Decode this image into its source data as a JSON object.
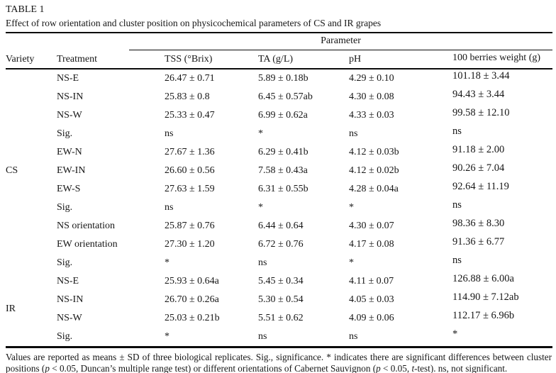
{
  "page": {
    "label": "TABLE 1",
    "caption": "Effect of row orientation and cluster position on physicochemical parameters of CS and IR grapes"
  },
  "table": {
    "group_header": "Parameter",
    "columns": [
      {
        "key": "variety",
        "label": "Variety"
      },
      {
        "key": "treatment",
        "label": "Treatment"
      },
      {
        "key": "tss",
        "label": "TSS (°Brix)"
      },
      {
        "key": "ta",
        "label": "TA (g/L)"
      },
      {
        "key": "ph",
        "label": "pH"
      },
      {
        "key": "weight",
        "label": "100 berries weight (g)"
      }
    ],
    "groups": [
      {
        "variety": "CS",
        "rows": [
          {
            "treatment": "NS-E",
            "tss": "26.47 ± 0.71",
            "ta": "5.89 ± 0.18b",
            "ph": "4.29 ± 0.10",
            "weight": "101.18 ± 3.44"
          },
          {
            "treatment": "NS-IN",
            "tss": "25.83 ± 0.8",
            "ta": "6.45 ± 0.57ab",
            "ph": "4.30 ± 0.08",
            "weight": "94.43 ± 3.44"
          },
          {
            "treatment": "NS-W",
            "tss": "25.33 ± 0.47",
            "ta": "6.99 ± 0.62a",
            "ph": "4.33 ± 0.03",
            "weight": "99.58 ± 12.10"
          },
          {
            "treatment": "Sig.",
            "tss": "ns",
            "ta": "*",
            "ph": "ns",
            "weight": "ns"
          },
          {
            "treatment": "EW-N",
            "tss": "27.67 ± 1.36",
            "ta": "6.29 ± 0.41b",
            "ph": "4.12 ± 0.03b",
            "weight": "91.18 ± 2.00"
          },
          {
            "treatment": "EW-IN",
            "tss": "26.60 ± 0.56",
            "ta": "7.58 ± 0.43a",
            "ph": "4.12 ± 0.02b",
            "weight": "90.26 ± 7.04"
          },
          {
            "treatment": "EW-S",
            "tss": "27.63 ± 1.59",
            "ta": "6.31 ± 0.55b",
            "ph": "4.28 ± 0.04a",
            "weight": "92.64 ± 11.19"
          },
          {
            "treatment": "Sig.",
            "tss": "ns",
            "ta": "*",
            "ph": "*",
            "weight": "ns"
          },
          {
            "treatment": "NS orientation",
            "tss": "25.87 ± 0.76",
            "ta": "6.44 ± 0.64",
            "ph": "4.30 ± 0.07",
            "weight": "98.36 ± 8.30"
          },
          {
            "treatment": "EW orientation",
            "tss": "27.30 ± 1.20",
            "ta": "6.72 ± 0.76",
            "ph": "4.17 ± 0.08",
            "weight": "91.36 ± 6.77"
          },
          {
            "treatment": "Sig.",
            "tss": "*",
            "ta": "ns",
            "ph": "*",
            "weight": "ns"
          }
        ]
      },
      {
        "variety": "IR",
        "rows": [
          {
            "treatment": "NS-E",
            "tss": "25.93 ± 0.64a",
            "ta": "5.45 ± 0.34",
            "ph": "4.11 ± 0.07",
            "weight": "126.88 ± 6.00a"
          },
          {
            "treatment": "NS-IN",
            "tss": "26.70 ± 0.26a",
            "ta": "5.30 ± 0.54",
            "ph": "4.05 ± 0.03",
            "weight": "114.90 ± 7.12ab"
          },
          {
            "treatment": "NS-W",
            "tss": "25.03 ± 0.21b",
            "ta": "5.51 ± 0.62",
            "ph": "4.09 ± 0.06",
            "weight": "112.17 ± 6.96b"
          },
          {
            "treatment": "Sig.",
            "tss": "*",
            "ta": "ns",
            "ph": "ns",
            "weight": "*"
          }
        ]
      }
    ]
  },
  "footnote": {
    "segments": [
      {
        "text": "Values are reported as means ± SD of three biological replicates. Sig., significance. * indicates there are significant differences between cluster positions (",
        "italic": false
      },
      {
        "text": "p",
        "italic": true
      },
      {
        "text": " < 0.05, Duncan’s multiple range test) or different orientations of Cabernet Sauvignon (",
        "italic": false
      },
      {
        "text": "p",
        "italic": true
      },
      {
        "text": " < 0.05, ",
        "italic": false
      },
      {
        "text": "t",
        "italic": true
      },
      {
        "text": "-test). ns, not significant.",
        "italic": false
      }
    ]
  }
}
